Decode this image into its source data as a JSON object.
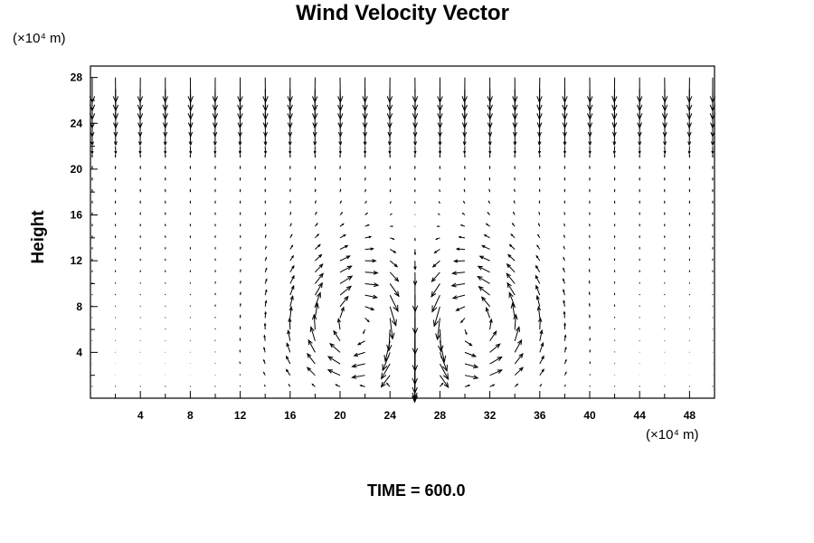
{
  "chart_data": {
    "type": "vector-field",
    "title": "Wind Velocity Vector",
    "ylabel": "Height",
    "xunit": "(×10⁴ m)",
    "yunit": "(×10⁴ m)",
    "xlim": [
      0,
      50
    ],
    "ylim": [
      0,
      29
    ],
    "xticks": [
      4,
      8,
      12,
      16,
      20,
      24,
      28,
      32,
      36,
      40,
      44,
      48
    ],
    "yticks": [
      4,
      8,
      12,
      16,
      20,
      24,
      28
    ],
    "minor_tick_step": 2,
    "grid_x": {
      "start": 0,
      "stop": 50,
      "step": 2
    },
    "grid_y": {
      "start": 1,
      "stop": 28,
      "step": 1
    },
    "field_model": {
      "top_downflow": {
        "from_height": 21.5,
        "base": 8,
        "slope": 3.2
      },
      "mid_updraft": {
        "from_height": 12,
        "to_height": 21.5,
        "speed": 3
      },
      "vortices": [
        {
          "x": 22.3,
          "y": 6.3,
          "sense": "clockwise",
          "strength": 30,
          "radius": 4.2
        },
        {
          "x": 29.8,
          "y": 6.3,
          "sense": "counterclockwise",
          "strength": 30,
          "radius": 4.2
        }
      ],
      "central_jet": {
        "x": 26,
        "y_min": 1.5,
        "y_max": 10.5,
        "speed": 28
      }
    },
    "annotation": "TIME = 600.0"
  }
}
